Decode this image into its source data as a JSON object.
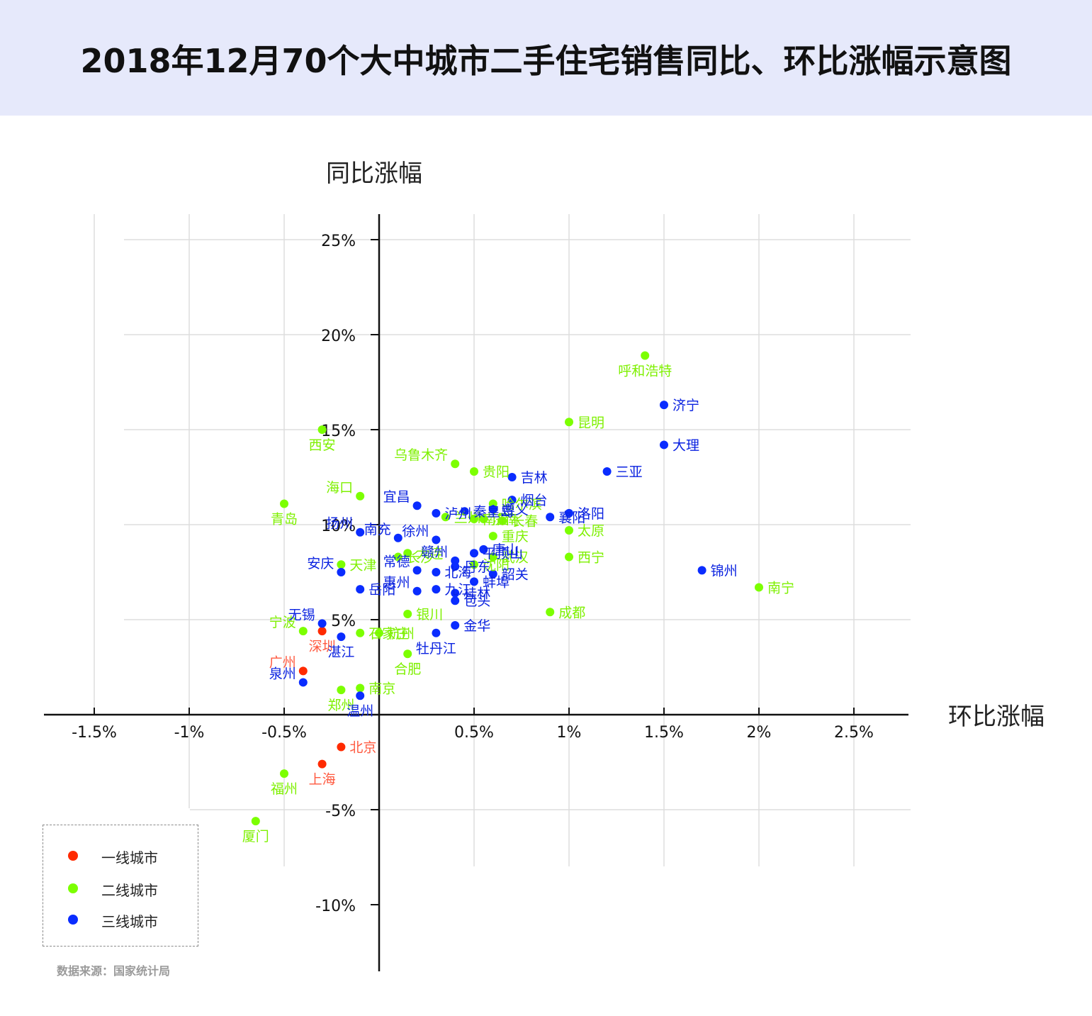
{
  "title": "2018年12月70个大中城市二手住宅销售同比、环比涨幅示意图",
  "source": "数据来源：国家统计局",
  "legend": [
    {
      "label": "一线城市",
      "color": "#ff2a00"
    },
    {
      "label": "二线城市",
      "color": "#7cff00"
    },
    {
      "label": "三线城市",
      "color": "#0a2cff"
    }
  ],
  "chart_data": {
    "type": "scatter",
    "xlabel": "环比涨幅",
    "ylabel": "同比涨幅",
    "xlim": [
      -1.8,
      2.8
    ],
    "ylim": [
      -13.5,
      26.5
    ],
    "x_ticks": [
      -1.5,
      -1,
      -0.5,
      0.5,
      1,
      1.5,
      2,
      2.5
    ],
    "x_tick_labels": [
      "-1.5%",
      "-1%",
      "-0.5%",
      "0.5%",
      "1%",
      "1.5%",
      "2%",
      "2.5%"
    ],
    "y_ticks": [
      -10,
      -5,
      5,
      10,
      15,
      20,
      25
    ],
    "y_tick_labels": [
      "-10%",
      "-5%",
      "5%",
      "10%",
      "15%",
      "20%",
      "25%"
    ],
    "grid": true,
    "tier_colors": {
      "1": "#ff2a00",
      "2": "#7cff00",
      "3": "#0a2cff"
    },
    "label_colors": {
      "1": "#ff5a40",
      "2": "#7ef000",
      "3": "#0a22e0"
    },
    "points": [
      {
        "city": "北京",
        "x": -0.2,
        "y": -1.7,
        "tier": 1
      },
      {
        "city": "上海",
        "x": -0.3,
        "y": -2.6,
        "tier": 1
      },
      {
        "city": "广州",
        "x": -0.4,
        "y": 2.3,
        "tier": 1
      },
      {
        "city": "深圳",
        "x": -0.3,
        "y": 4.4,
        "tier": 1
      },
      {
        "city": "呼和浩特",
        "x": 1.4,
        "y": 18.9,
        "tier": 2
      },
      {
        "city": "昆明",
        "x": 1.0,
        "y": 15.4,
        "tier": 2
      },
      {
        "city": "西安",
        "x": -0.3,
        "y": 15.0,
        "tier": 2
      },
      {
        "city": "乌鲁木齐",
        "x": 0.4,
        "y": 13.2,
        "tier": 2
      },
      {
        "city": "贵阳",
        "x": 0.5,
        "y": 12.8,
        "tier": 2
      },
      {
        "city": "海口",
        "x": -0.1,
        "y": 11.5,
        "tier": 2
      },
      {
        "city": "青岛",
        "x": -0.5,
        "y": 11.1,
        "tier": 2
      },
      {
        "city": "哈尔滨",
        "x": 0.6,
        "y": 11.1,
        "tier": 2
      },
      {
        "city": "南昌",
        "x": 0.5,
        "y": 10.3,
        "tier": 2
      },
      {
        "city": "兰州",
        "x": 0.35,
        "y": 10.4,
        "tier": 2
      },
      {
        "city": "济南",
        "x": 0.55,
        "y": 10.3,
        "tier": 2
      },
      {
        "city": "长春",
        "x": 0.65,
        "y": 10.2,
        "tier": 2
      },
      {
        "city": "太原",
        "x": 1.0,
        "y": 9.7,
        "tier": 2
      },
      {
        "city": "重庆",
        "x": 0.6,
        "y": 9.4,
        "tier": 2
      },
      {
        "city": "西宁",
        "x": 1.0,
        "y": 8.3,
        "tier": 2
      },
      {
        "city": "大连",
        "x": 0.15,
        "y": 8.5,
        "tier": 2
      },
      {
        "city": "武汉",
        "x": 0.6,
        "y": 8.3,
        "tier": 2
      },
      {
        "city": "天津",
        "x": -0.2,
        "y": 7.9,
        "tier": 2
      },
      {
        "city": "长沙",
        "x": 0.1,
        "y": 8.3,
        "tier": 2
      },
      {
        "city": "沈阳",
        "x": 0.5,
        "y": 7.9,
        "tier": 2
      },
      {
        "city": "南宁",
        "x": 2.0,
        "y": 6.7,
        "tier": 2
      },
      {
        "city": "成都",
        "x": 0.9,
        "y": 5.4,
        "tier": 2
      },
      {
        "city": "银川",
        "x": 0.15,
        "y": 5.3,
        "tier": 2
      },
      {
        "city": "杭州",
        "x": 0.0,
        "y": 4.3,
        "tier": 2
      },
      {
        "city": "宁波",
        "x": -0.4,
        "y": 4.4,
        "tier": 2
      },
      {
        "city": "石家庄",
        "x": -0.1,
        "y": 4.3,
        "tier": 2
      },
      {
        "city": "合肥",
        "x": 0.15,
        "y": 3.2,
        "tier": 2
      },
      {
        "city": "南京",
        "x": -0.1,
        "y": 1.4,
        "tier": 2
      },
      {
        "city": "郑州",
        "x": -0.2,
        "y": 1.3,
        "tier": 2
      },
      {
        "city": "福州",
        "x": -0.5,
        "y": -3.1,
        "tier": 2
      },
      {
        "city": "厦门",
        "x": -0.65,
        "y": -5.6,
        "tier": 2
      },
      {
        "city": "济宁",
        "x": 1.5,
        "y": 16.3,
        "tier": 3
      },
      {
        "city": "大理",
        "x": 1.5,
        "y": 14.2,
        "tier": 3
      },
      {
        "city": "三亚",
        "x": 1.2,
        "y": 12.8,
        "tier": 3
      },
      {
        "city": "吉林",
        "x": 0.7,
        "y": 12.5,
        "tier": 3
      },
      {
        "city": "烟台",
        "x": 0.7,
        "y": 11.3,
        "tier": 3
      },
      {
        "city": "宜昌",
        "x": 0.2,
        "y": 11.0,
        "tier": 3
      },
      {
        "city": "泸州",
        "x": 0.3,
        "y": 10.6,
        "tier": 3
      },
      {
        "city": "秦皇岛",
        "x": 0.45,
        "y": 10.7,
        "tier": 3
      },
      {
        "city": "遵义",
        "x": 0.6,
        "y": 10.8,
        "tier": 3
      },
      {
        "city": "洛阳",
        "x": 1.0,
        "y": 10.6,
        "tier": 3
      },
      {
        "city": "襄阳",
        "x": 0.9,
        "y": 10.4,
        "tier": 3
      },
      {
        "city": "扬州",
        "x": -0.1,
        "y": 9.6,
        "tier": 3
      },
      {
        "city": "徐州",
        "x": 0.3,
        "y": 9.2,
        "tier": 3
      },
      {
        "city": "南充",
        "x": 0.1,
        "y": 9.3,
        "tier": 3
      },
      {
        "city": "平顶山",
        "x": 0.5,
        "y": 8.5,
        "tier": 3
      },
      {
        "city": "赣州",
        "x": 0.4,
        "y": 8.1,
        "tier": 3
      },
      {
        "city": "唐山",
        "x": 0.55,
        "y": 8.7,
        "tier": 3
      },
      {
        "city": "锦州",
        "x": 1.7,
        "y": 7.6,
        "tier": 3
      },
      {
        "city": "安庆",
        "x": -0.2,
        "y": 7.5,
        "tier": 3
      },
      {
        "city": "常德",
        "x": 0.2,
        "y": 7.6,
        "tier": 3
      },
      {
        "city": "北海",
        "x": 0.3,
        "y": 7.5,
        "tier": 3
      },
      {
        "city": "丹东",
        "x": 0.4,
        "y": 7.8,
        "tier": 3
      },
      {
        "city": "韶关",
        "x": 0.6,
        "y": 7.4,
        "tier": 3
      },
      {
        "city": "蚌埠",
        "x": 0.5,
        "y": 7.0,
        "tier": 3
      },
      {
        "city": "岳阳",
        "x": -0.1,
        "y": 6.6,
        "tier": 3
      },
      {
        "city": "惠州",
        "x": 0.2,
        "y": 6.5,
        "tier": 3
      },
      {
        "city": "九江",
        "x": 0.3,
        "y": 6.6,
        "tier": 3
      },
      {
        "city": "桂林",
        "x": 0.4,
        "y": 6.4,
        "tier": 3
      },
      {
        "city": "包头",
        "x": 0.4,
        "y": 6.0,
        "tier": 3
      },
      {
        "city": "无锡",
        "x": -0.3,
        "y": 4.8,
        "tier": 3
      },
      {
        "city": "金华",
        "x": 0.4,
        "y": 4.7,
        "tier": 3
      },
      {
        "city": "湛江",
        "x": -0.2,
        "y": 4.1,
        "tier": 3
      },
      {
        "city": "牡丹江",
        "x": 0.3,
        "y": 4.3,
        "tier": 3
      },
      {
        "city": "泉州",
        "x": -0.4,
        "y": 1.7,
        "tier": 3
      },
      {
        "city": "温州",
        "x": -0.1,
        "y": 1.0,
        "tier": 3
      }
    ]
  }
}
